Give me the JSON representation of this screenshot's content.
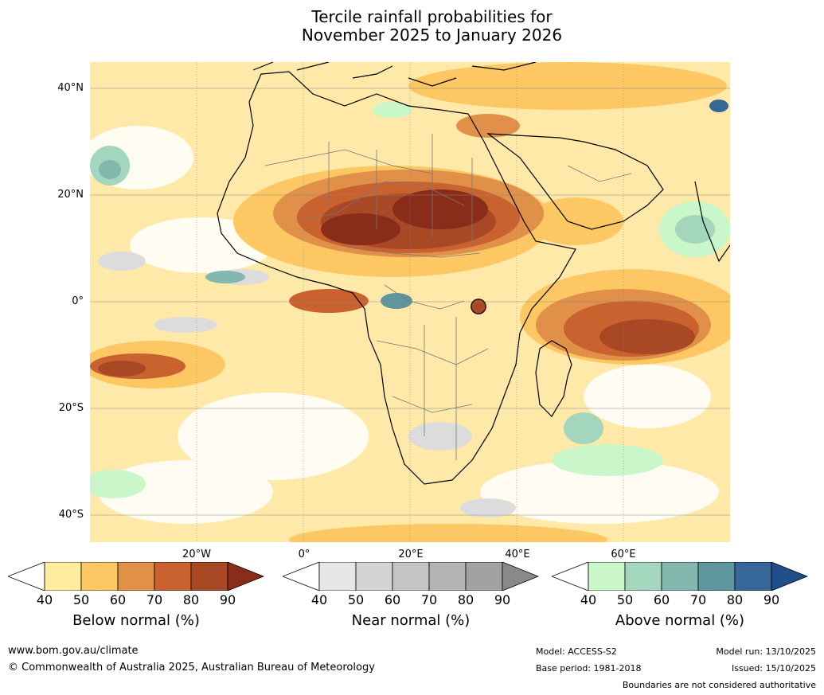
{
  "title": {
    "line1": "Tercile rainfall probabilities for",
    "line2": "November 2025 to January 2026"
  },
  "map": {
    "lat_labels": [
      "40°N",
      "20°N",
      "0°",
      "20°S",
      "40°S"
    ],
    "lon_labels": [
      "20°W",
      "0°",
      "20°E",
      "40°E",
      "60°E"
    ]
  },
  "colorbars": [
    {
      "name": "below-normal",
      "label": "Below normal (%)",
      "ticks": [
        "40",
        "50",
        "60",
        "70",
        "80",
        "90"
      ],
      "colors": [
        "#ffec9e",
        "#fdc863",
        "#e09048",
        "#c9622f",
        "#a84825",
        "#8a2c1a"
      ]
    },
    {
      "name": "near-normal",
      "label": "Near normal (%)",
      "ticks": [
        "40",
        "50",
        "60",
        "70",
        "80",
        "90"
      ],
      "colors": [
        "#e6e6e6",
        "#d4d4d4",
        "#c4c4c4",
        "#b3b3b3",
        "#a2a2a2",
        "#898989"
      ]
    },
    {
      "name": "above-normal",
      "label": "Above normal (%)",
      "ticks": [
        "40",
        "50",
        "60",
        "70",
        "80",
        "90"
      ],
      "colors": [
        "#c9f7c9",
        "#a3d6bc",
        "#82b8ad",
        "#5e969e",
        "#356798",
        "#1e4f88"
      ]
    }
  ],
  "footer": {
    "website": "www.bom.gov.au/climate",
    "copyright": "© Commonwealth of Australia 2025, Australian Bureau of Meteorology",
    "model": "Model: ACCESS-S2",
    "base_period": "Base period: 1981-2018",
    "model_run": "Model run: 13/10/2025",
    "issued": "Issued: 15/10/2025",
    "disclaimer": "Boundaries are not considered authoritative"
  }
}
